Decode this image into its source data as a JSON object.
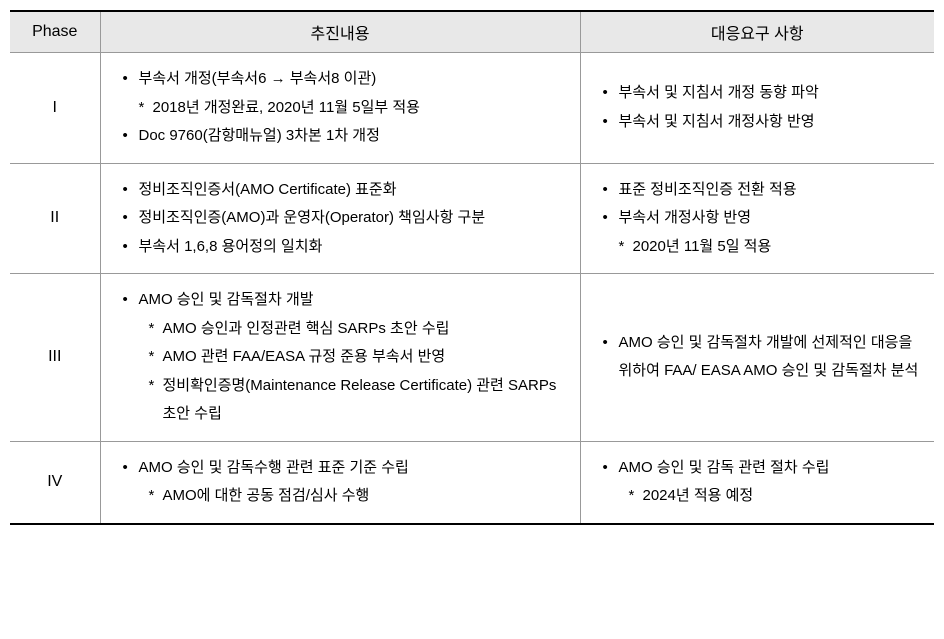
{
  "table": {
    "headers": {
      "phase": "Phase",
      "content": "추진내용",
      "response": "대응요구 사항"
    },
    "rows": [
      {
        "phase": "I",
        "contentItems": [
          {
            "type": "bullet",
            "text": "부속서 개정(부속서6 → 부속서8 이관)"
          },
          {
            "type": "sub",
            "text": "2018년 개정완료, 2020년 11월 5일부 적용"
          },
          {
            "type": "bullet",
            "text": "Doc 9760(감항매뉴얼) 3차본 1차 개정"
          }
        ],
        "responseItems": [
          {
            "type": "bullet",
            "text": "부속서 및 지침서 개정 동향 파악"
          },
          {
            "type": "bullet",
            "text": "부속서 및 지침서 개정사항 반영"
          }
        ]
      },
      {
        "phase": "II",
        "contentItems": [
          {
            "type": "bullet",
            "text": "정비조직인증서(AMO Certificate) 표준화"
          },
          {
            "type": "bullet",
            "text": "정비조직인증(AMO)과 운영자(Operator) 책임사항 구분"
          },
          {
            "type": "bullet",
            "text": "부속서 1,6,8 용어정의 일치화"
          }
        ],
        "responseItems": [
          {
            "type": "bullet",
            "text": "표준 정비조직인증 전환 적용"
          },
          {
            "type": "bullet",
            "text": "부속서 개정사항 반영"
          },
          {
            "type": "sub",
            "text": "2020년 11월 5일 적용"
          }
        ]
      },
      {
        "phase": "III",
        "contentItems": [
          {
            "type": "bullet",
            "text": "AMO 승인 및 감독절차 개발"
          },
          {
            "type": "sub-deep",
            "text": "AMO 승인과 인정관련 핵심 SARPs 초안 수립"
          },
          {
            "type": "sub-deep",
            "text": "AMO 관련 FAA/EASA 규정 준용 부속서 반영"
          },
          {
            "type": "sub-deep",
            "text": "정비확인증명(Maintenance Release Certificate) 관련 SARPs 초안 수립"
          }
        ],
        "responseItems": [
          {
            "type": "bullet",
            "text": "AMO 승인 및 감독절차 개발에 선제적인 대응을 위하여 FAA/ EASA AMO 승인 및 감독절차 분석"
          }
        ]
      },
      {
        "phase": "IV",
        "contentItems": [
          {
            "type": "bullet",
            "text": "AMO 승인 및 감독수행 관련 표준 기준 수립"
          },
          {
            "type": "sub-deep",
            "text": "AMO에 대한 공동 점검/심사 수행"
          }
        ],
        "responseItems": [
          {
            "type": "bullet",
            "text": "AMO 승인 및 감독 관련 절차 수립"
          },
          {
            "type": "sub-deep",
            "text": "2024년 적용 예정"
          }
        ]
      }
    ]
  }
}
